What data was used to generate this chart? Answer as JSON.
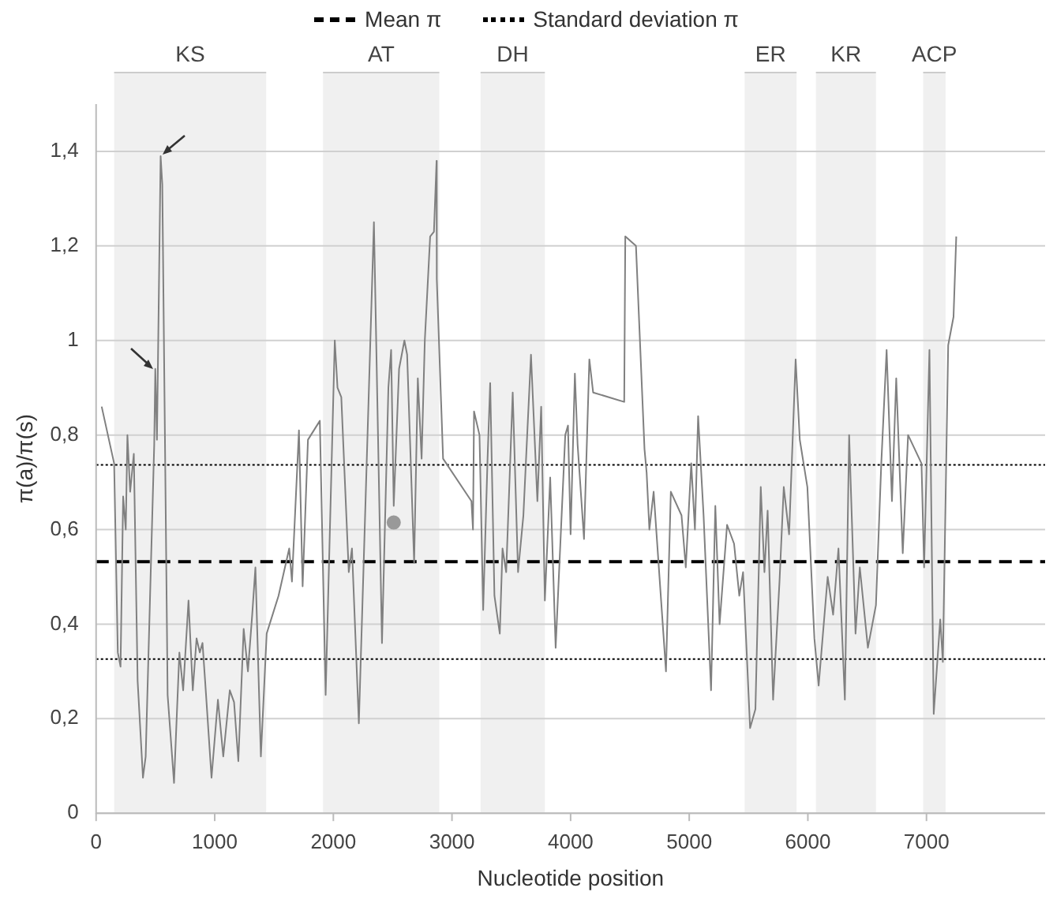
{
  "chart_data": {
    "type": "line",
    "xlabel": "Nucleotide position",
    "ylabel": "π(a)/π(s)",
    "xlim": [
      0,
      8000
    ],
    "xticks": [
      0,
      1000,
      2000,
      3000,
      4000,
      5000,
      6000,
      7000
    ],
    "ylim": [
      0,
      1.5
    ],
    "yticks": [
      0,
      {
        "value": 0.2,
        "label": "0,2"
      },
      {
        "value": 0.4,
        "label": "0,4"
      },
      {
        "value": 0.6,
        "label": "0,6"
      },
      {
        "value": 0.8,
        "label": "0,8"
      },
      1,
      {
        "value": 1.2,
        "label": "1,2"
      },
      {
        "value": 1.4,
        "label": "1,4"
      }
    ],
    "grid": "y",
    "legend": "top",
    "series": [
      {
        "color": "#808080",
        "x": [
          47,
          152,
          183,
          206,
          228,
          250,
          264,
          287,
          318,
          350,
          395,
          418,
          454,
          490,
          499,
          513,
          544,
          558,
          603,
          657,
          702,
          734,
          779,
          815,
          847,
          874,
          897,
          919,
          973,
          1027,
          1072,
          1127,
          1163,
          1199,
          1244,
          1280,
          1316,
          1343,
          1389,
          1438,
          1538,
          1628,
          1651,
          1710,
          1741,
          1786,
          1886,
          1935,
          2012,
          2035,
          2067,
          2130,
          2157,
          2215,
          2342,
          2410,
          2464,
          2487,
          2509,
          2554,
          2599,
          2622,
          2681,
          2712,
          2744,
          2771,
          2816,
          2848,
          2870,
          2872,
          2925,
          3164,
          3177,
          3186,
          3232,
          3263,
          3300,
          3322,
          3358,
          3403,
          3426,
          3457,
          3512,
          3557,
          3602,
          3666,
          3720,
          3752,
          3783,
          3828,
          3874,
          3955,
          3978,
          4000,
          4036,
          4059,
          4113,
          4158,
          4190,
          4452,
          4461,
          4551,
          4623,
          4641,
          4664,
          4700,
          4804,
          4845,
          4935,
          4971,
          5017,
          5048,
          5075,
          5121,
          5184,
          5220,
          5256,
          5319,
          5378,
          5422,
          5454,
          5513,
          5558,
          5603,
          5634,
          5661,
          5707,
          5761,
          5797,
          5842,
          5897,
          5932,
          5996,
          6055,
          6091,
          6167,
          6213,
          6258,
          6312,
          6348,
          6402,
          6438,
          6506,
          6574,
          6619,
          6664,
          6709,
          6745,
          6800,
          6845,
          6958,
          6980,
          7025,
          7061,
          7116,
          7138,
          7183,
          7228,
          7251
        ],
        "values": [
          0.86,
          0.74,
          0.34,
          0.31,
          0.67,
          0.6,
          0.8,
          0.68,
          0.76,
          0.28,
          0.075,
          0.12,
          0.45,
          0.78,
          0.94,
          0.79,
          1.39,
          1.33,
          0.25,
          0.064,
          0.34,
          0.26,
          0.45,
          0.26,
          0.37,
          0.34,
          0.36,
          0.28,
          0.075,
          0.24,
          0.12,
          0.26,
          0.235,
          0.11,
          0.39,
          0.3,
          0.42,
          0.52,
          0.12,
          0.38,
          0.46,
          0.56,
          0.49,
          0.81,
          0.48,
          0.79,
          0.83,
          0.25,
          1.0,
          0.9,
          0.88,
          0.51,
          0.56,
          0.19,
          1.25,
          0.36,
          0.9,
          0.98,
          0.65,
          0.94,
          1.0,
          0.97,
          0.53,
          0.92,
          0.75,
          1.0,
          1.22,
          1.23,
          1.38,
          1.13,
          0.75,
          0.66,
          0.6,
          0.85,
          0.8,
          0.43,
          0.75,
          0.91,
          0.46,
          0.38,
          0.56,
          0.51,
          0.89,
          0.51,
          0.63,
          0.97,
          0.66,
          0.86,
          0.45,
          0.71,
          0.35,
          0.8,
          0.82,
          0.59,
          0.93,
          0.78,
          0.58,
          0.96,
          0.89,
          0.87,
          1.22,
          1.2,
          0.77,
          0.72,
          0.6,
          0.68,
          0.3,
          0.68,
          0.63,
          0.52,
          0.74,
          0.6,
          0.84,
          0.63,
          0.26,
          0.65,
          0.4,
          0.61,
          0.57,
          0.46,
          0.51,
          0.18,
          0.22,
          0.69,
          0.51,
          0.64,
          0.24,
          0.49,
          0.69,
          0.59,
          0.96,
          0.79,
          0.69,
          0.37,
          0.27,
          0.5,
          0.42,
          0.56,
          0.24,
          0.8,
          0.38,
          0.52,
          0.35,
          0.44,
          0.74,
          0.98,
          0.66,
          0.92,
          0.55,
          0.8,
          0.74,
          0.52,
          0.98,
          0.21,
          0.41,
          0.32,
          0.99,
          1.05,
          1.22
        ]
      },
      {
        "type": "scatter",
        "color": "#999999",
        "x": [
          2509
        ],
        "values": [
          0.615
        ]
      }
    ],
    "ref_lines": [
      {
        "axis": "y",
        "value": 0.532,
        "label": "Mean π",
        "line_style": "dashed",
        "color": "#000000"
      },
      {
        "axis": "y",
        "value": 0.737,
        "label": "Standard deviation π",
        "line_style": "dotted",
        "color": "#000000"
      },
      {
        "axis": "y",
        "value": 0.326,
        "line_style": "dotted",
        "color": "#000000"
      }
    ],
    "bands": [
      {
        "axis": "x",
        "from": 152,
        "to": 1434,
        "label": "KS",
        "color": "#f0f0f0"
      },
      {
        "axis": "x",
        "from": 1913,
        "to": 2893,
        "label": "AT",
        "color": "#f0f0f0"
      },
      {
        "axis": "x",
        "from": 3241,
        "to": 3783,
        "label": "DH",
        "color": "#f0f0f0"
      },
      {
        "axis": "x",
        "from": 5467,
        "to": 5905,
        "label": "ER",
        "color": "#f0f0f0"
      },
      {
        "axis": "x",
        "from": 6068,
        "to": 6574,
        "label": "KR",
        "color": "#f0f0f0"
      },
      {
        "axis": "x",
        "from": 6972,
        "to": 7161,
        "label": "ACP",
        "color": "#f0f0f0"
      }
    ]
  }
}
